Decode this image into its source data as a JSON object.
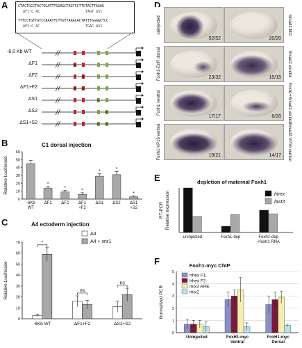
{
  "panels": {
    "A": "A",
    "B": "B",
    "C": "C",
    "D": "D",
    "E": "E",
    "F": "F"
  },
  "panelA": {
    "seq_top": "CTACTGCCTACTGGATTTGGAGCTAGTCCTTGTACTTAGAG",
    "seq_top_marks_left": "ΔF1:C AC",
    "seq_top_marks_right": "TAGT ΔS1",
    "seq_bottom": "TTTCCTGTTGTCCAAATTCTTGTTAAACACTATTTGGGGCTCC",
    "seq_bottom_marks_left": "ΔF2:C AC",
    "seq_bottom_marks_right": "TGAC ΔS2",
    "constructs": [
      "-6.0 Kb WT",
      "ΔF1",
      "ΔF2",
      "ΔF1+F2",
      "ΔS1",
      "ΔS2",
      "ΔS1+S2"
    ]
  },
  "panelB": {
    "title": "C1 dorsal injection"
  },
  "panelC": {
    "title": "A4 ectoderm injection",
    "sig_marks": [
      "*",
      "ns",
      "ns"
    ]
  },
  "panelD": {
    "rows": [
      {
        "left_label": "uninjected",
        "right_label": "Smad2-MO",
        "left_count": "52/52",
        "right_count": "20/20"
      },
      {
        "left_label": "Foxh1-EnR dorsal",
        "right_label": "Smad2 ventral",
        "left_count": "23/32",
        "right_count": "15/15"
      },
      {
        "left_label": "Foxh1 ventral",
        "right_label": "Foxh1+Smad2 ventral",
        "left_count": "17/17",
        "right_count": "6/20"
      },
      {
        "left_label": "Foxh1-VP16 ventral",
        "right_label": "Smad2-VP16 ventral",
        "left_count": "19/21",
        "right_count": "14/17"
      }
    ]
  },
  "panelF": {
    "title": "Foxh1-myc ChIP"
  },
  "colors": {
    "gray_bar": "#a8a8a8",
    "dark_bar": "#111111",
    "f_blue": "#8b8fc6",
    "f_maroon": "#7a1a3a",
    "f_yellow": "#f4eeb0",
    "f_cyan": "#b9e3ee",
    "red_box": "#cc2222",
    "green_box": "#7aa84a"
  },
  "chart_data": [
    {
      "type": "bar",
      "title": "C1 dorsal injection",
      "ylabel": "Relative Luciferase",
      "categories": [
        "-6Kb WT",
        "ΔF1",
        "ΔF2",
        "ΔF1 +F2",
        "ΔS1",
        "ΔS2",
        "ΔS1 +S2"
      ],
      "values": [
        45,
        14,
        9,
        6,
        29,
        31,
        3
      ],
      "errors": [
        4,
        2,
        2,
        2,
        3,
        4,
        1
      ],
      "significance": [
        "",
        "*",
        "*",
        "*",
        "*",
        "*",
        "*"
      ],
      "ylim": [
        0,
        60
      ],
      "yticks": [
        0,
        10,
        20,
        30,
        40,
        50,
        60
      ]
    },
    {
      "type": "bar",
      "title": "A4 ectoderm injection",
      "ylabel": "Relative Luciferase",
      "categories": [
        "-6Kb WT",
        "ΔF1+F2",
        "ΔS1+S2"
      ],
      "yticks": [
        0,
        10,
        20,
        30,
        40,
        50,
        60,
        70
      ],
      "ylim": [
        0,
        70
      ],
      "series": [
        {
          "name": "A4",
          "values": [
            3,
            16,
            11
          ],
          "errors": [
            1,
            5,
            5
          ],
          "color": "#ffffff"
        },
        {
          "name": "A4 + xnr1",
          "values": [
            59,
            13,
            22
          ],
          "errors": [
            6,
            4,
            6
          ],
          "color": "#a8a8a8"
        }
      ]
    },
    {
      "type": "bar",
      "title": "depletion of maternal Foxh1",
      "ylabel": "RT-PCR Relative expression",
      "categories": [
        "uninjected",
        "Foxh1-dep",
        "Foxh1-dep +foxh1 RNA"
      ],
      "ylim": [
        0,
        50
      ],
      "yticks": [
        0,
        10,
        20,
        30,
        40,
        50
      ],
      "series": [
        {
          "name": "hhex",
          "values": [
            50,
            7,
            25
          ],
          "color": "#111111"
        },
        {
          "name": "fast3",
          "values": [
            18,
            20,
            21
          ],
          "color": "#a8a8a8"
        }
      ]
    },
    {
      "type": "bar",
      "title": "Foxh1-myc ChIP",
      "ylabel": "Normalized PCR",
      "categories": [
        "Uninjected",
        "FoxH1-myc Ventral",
        "FoxH1-myc Dorsal"
      ],
      "ylim": [
        0,
        5
      ],
      "yticks": [
        0,
        1,
        2,
        3,
        4,
        5
      ],
      "series": [
        {
          "name": "hhex F1",
          "values": [
            0.7,
            2.7,
            2.3
          ],
          "errors": [
            0.4,
            0.6,
            0.7
          ],
          "color": "#8b8fc6"
        },
        {
          "name": "hhex F2",
          "values": [
            0.7,
            3.0,
            2.7
          ],
          "errors": [
            0.3,
            0.5,
            0.6
          ],
          "color": "#7a1a3a"
        },
        {
          "name": "mix2 ARE",
          "values": [
            0.7,
            3.5,
            2.9
          ],
          "errors": [
            0.3,
            1.0,
            0.5
          ],
          "color": "#f4eeb0"
        },
        {
          "name": "mix2",
          "values": [
            0.5,
            0.5,
            0.6
          ],
          "errors": [
            0.4,
            0.3,
            0.1
          ],
          "color": "#b9e3ee"
        }
      ]
    }
  ]
}
